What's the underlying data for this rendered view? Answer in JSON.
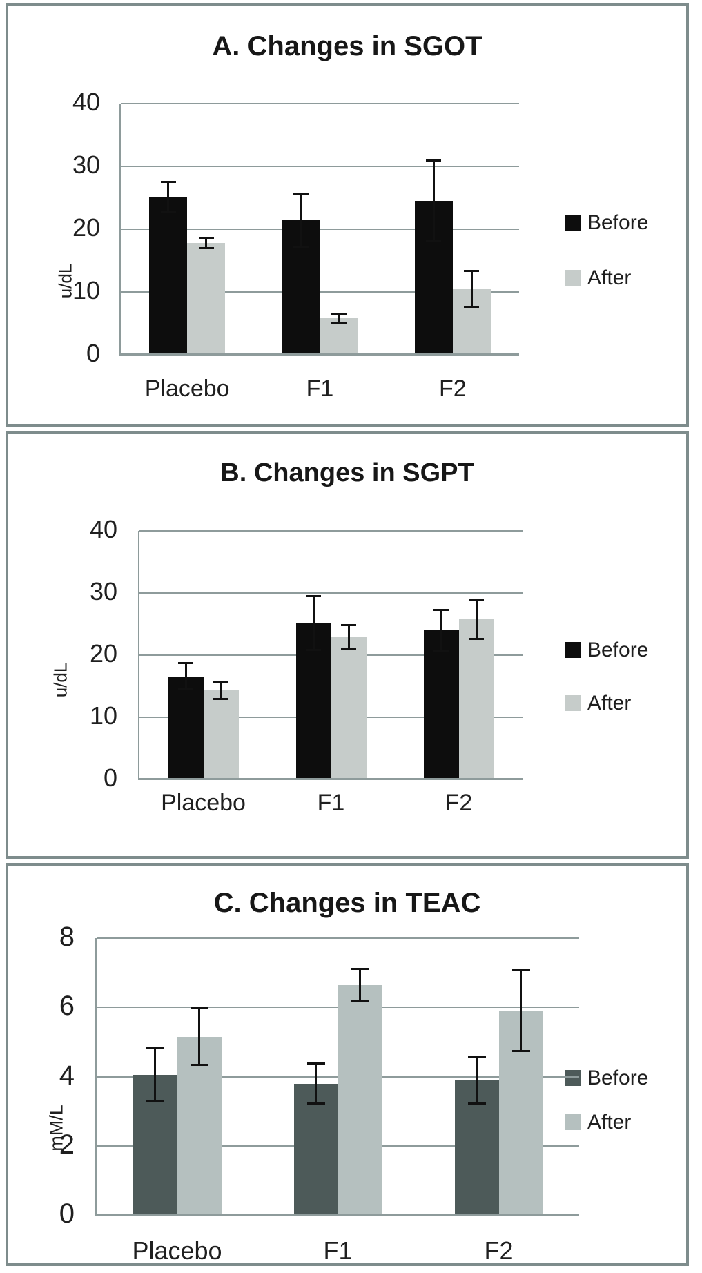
{
  "style": {
    "panel_border_color": "#7e8c8c",
    "gridline_color": "#8e9b9b",
    "error_bar_color": "#111111",
    "background": "#ffffff"
  },
  "chart_data": [
    {
      "id": "sgot",
      "type": "bar",
      "title": "A. Changes in SGOT",
      "ylabel": "u/dL",
      "categories": [
        "Placebo",
        "F1",
        "F2"
      ],
      "yticks": [
        0,
        10,
        20,
        30,
        40
      ],
      "ylim": [
        0,
        40
      ],
      "grid": true,
      "legend_position": "right",
      "series": [
        {
          "name": "Before",
          "color": "#0d0d0d",
          "values": [
            25.1,
            21.4,
            24.5
          ],
          "errors": [
            2.6,
            4.4,
            6.6
          ]
        },
        {
          "name": "After",
          "color": "#c6ccca",
          "values": [
            17.8,
            5.8,
            10.5
          ],
          "errors": [
            1.0,
            0.9,
            3.0
          ]
        }
      ]
    },
    {
      "id": "sgpt",
      "type": "bar",
      "title": "B. Changes in SGPT",
      "ylabel": "u/dL",
      "categories": [
        "Placebo",
        "F1",
        "F2"
      ],
      "yticks": [
        0,
        10,
        20,
        30,
        40
      ],
      "ylim": [
        0,
        40
      ],
      "grid": true,
      "legend_position": "right",
      "series": [
        {
          "name": "Before",
          "color": "#0d0d0d",
          "values": [
            16.6,
            25.2,
            24.0
          ],
          "errors": [
            2.3,
            4.5,
            3.5
          ]
        },
        {
          "name": "After",
          "color": "#c6ccca",
          "values": [
            14.3,
            22.9,
            25.8
          ],
          "errors": [
            1.5,
            2.1,
            3.3
          ]
        }
      ]
    },
    {
      "id": "teac",
      "type": "bar",
      "title": "C. Changes in TEAC",
      "ylabel": "mM/L",
      "categories": [
        "Placebo",
        "F1",
        "F2"
      ],
      "yticks": [
        0,
        2,
        4,
        6,
        8
      ],
      "ylim": [
        0,
        8
      ],
      "grid": true,
      "legend_position": "right",
      "series": [
        {
          "name": "Before",
          "color": "#4d5a59",
          "values": [
            4.05,
            3.8,
            3.9
          ],
          "errors": [
            0.8,
            0.6,
            0.7
          ]
        },
        {
          "name": "After",
          "color": "#b5c0bf",
          "values": [
            5.15,
            6.65,
            5.9
          ],
          "errors": [
            0.85,
            0.5,
            1.2
          ]
        }
      ]
    }
  ]
}
